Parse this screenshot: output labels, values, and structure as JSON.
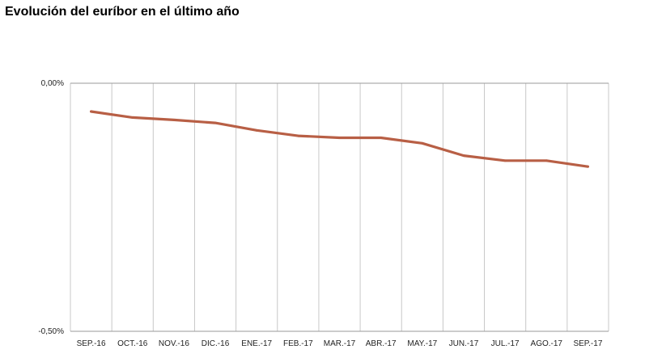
{
  "title": "Evolución del euríbor en el último año",
  "chart_data": {
    "type": "line",
    "title": "Evolución del euríbor en el último año",
    "xlabel": "",
    "ylabel": "",
    "categories": [
      "SEP.-16",
      "OCT.-16",
      "NOV.-16",
      "DIC.-16",
      "ENE.-17",
      "FEB.-17",
      "MAR.-17",
      "ABR.-17",
      "MAY.-17",
      "JUN.-17",
      "JUL.-17",
      "AGO.-17",
      "SEP.-17"
    ],
    "series": [
      {
        "values": [
          -0.057,
          -0.069,
          -0.074,
          -0.08,
          -0.095,
          -0.106,
          -0.11,
          -0.11,
          -0.121,
          -0.146,
          -0.156,
          -0.156,
          -0.168
        ]
      }
    ],
    "ylim": [
      -0.5,
      0.0
    ],
    "y_tick_labels": [
      "0,00%",
      "-0,50%"
    ],
    "grid": "vertical",
    "legend": "none",
    "colors": {
      "line": "#b85f45",
      "grid": "#c8c8c8",
      "axis": "#9a9a9a"
    }
  }
}
